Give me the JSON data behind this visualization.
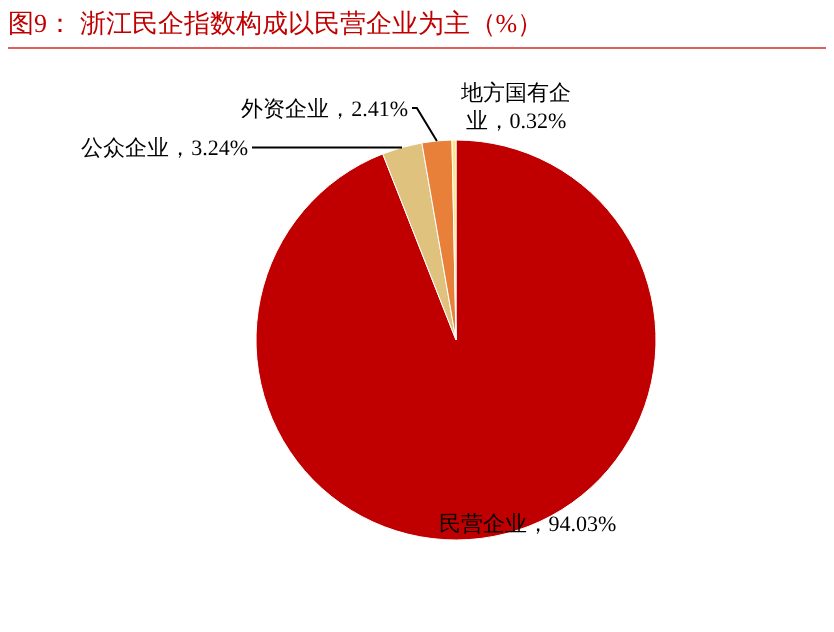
{
  "chart_data": {
    "type": "pie",
    "title": "图9：  浙江民企指数构成以民营企业为主（%）",
    "categories": [
      "民营企业",
      "公众企业",
      "外资企业",
      "地方国有企业"
    ],
    "values": [
      94.03,
      3.24,
      2.41,
      0.32
    ],
    "value_labels": [
      "94.03%",
      "3.24%",
      "2.41%",
      "0.32%"
    ],
    "colors": [
      "#c00000",
      "#dfc27d",
      "#e8803a",
      "#ffe680"
    ]
  }
}
